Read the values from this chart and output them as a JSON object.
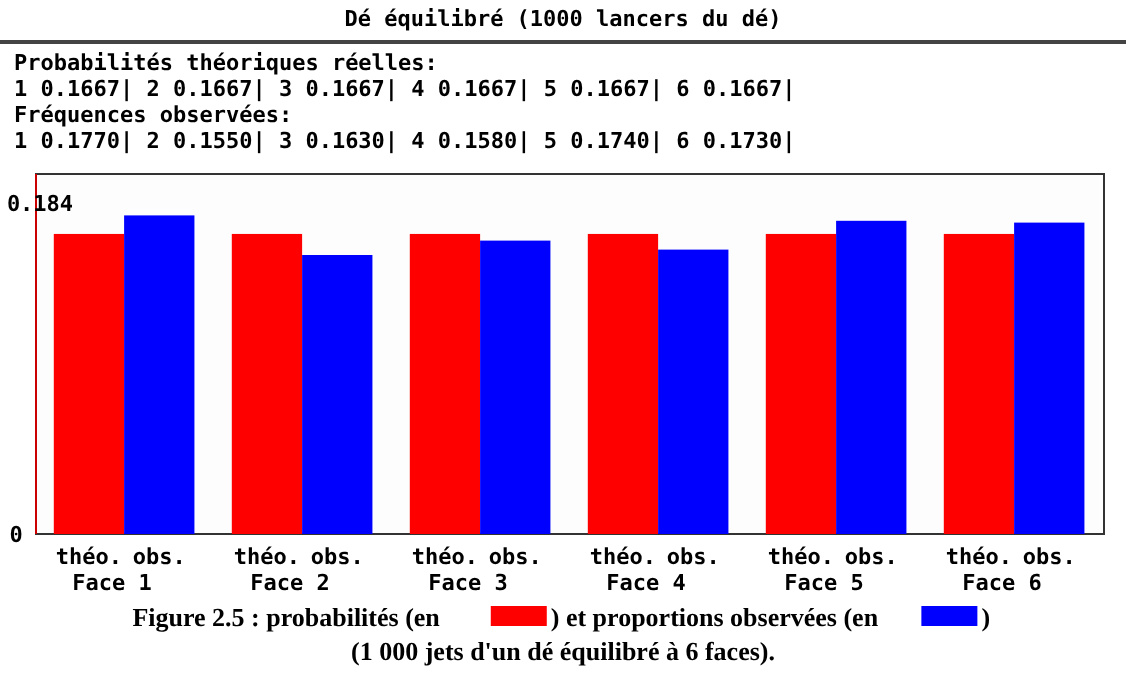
{
  "chart_data": {
    "type": "bar",
    "title": "Dé équilibré (1000 lancers du dé)",
    "categories": [
      "Face 1",
      "Face 2",
      "Face 3",
      "Face 4",
      "Face 5",
      "Face 6"
    ],
    "series": [
      {
        "name": "théo.",
        "color": "#ff0000",
        "values": [
          0.1667,
          0.1667,
          0.1667,
          0.1667,
          0.1667,
          0.1667
        ]
      },
      {
        "name": "obs.",
        "color": "#0000ff",
        "values": [
          0.177,
          0.155,
          0.163,
          0.158,
          0.174,
          0.173
        ]
      }
    ],
    "ylim": [
      0,
      0.2
    ],
    "yticks": [
      0,
      0.184
    ],
    "grid": false,
    "annotations": [
      "Probabilités théoriques réelles:",
      "1 0.1667| 2 0.1667| 3 0.1667| 4 0.1667| 5 0.1667| 6 0.1667|",
      "Fréquences observées:",
      "1 0.1770| 2 0.1550| 3 0.1630| 4 0.1580| 5 0.1740| 6 0.1730|",
      "Figure 2.5 : probabilités (en",
      ") et proportions observées (en",
      ")",
      "(1 000 jets d'un dé équilibré à 6 faces)."
    ]
  }
}
